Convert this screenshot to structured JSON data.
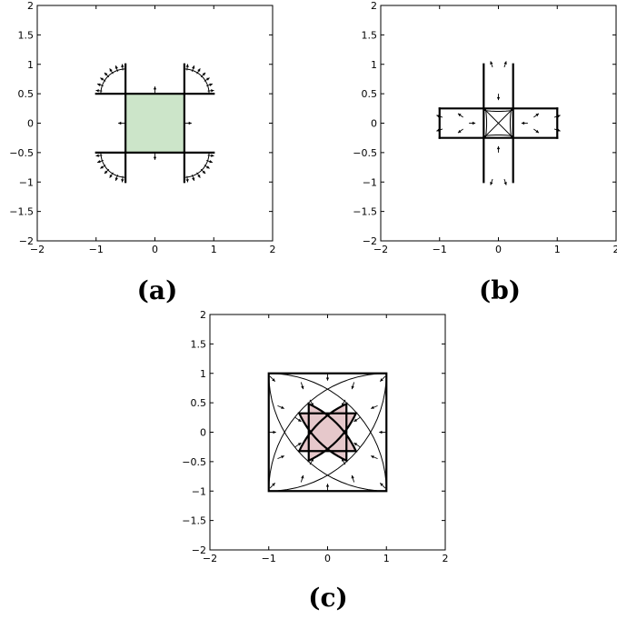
{
  "colors": {
    "region_a": "#cce5c9",
    "region_c": "#e6c8cb",
    "line": "#000000",
    "background": "#ffffff"
  },
  "axes": {
    "xlim": [
      -2,
      2
    ],
    "ylim": [
      -2,
      2
    ],
    "x_tick_labels": [
      "−2",
      "−1",
      "0",
      "1",
      "2"
    ],
    "y_tick_labels": [
      "2",
      "1.5",
      "1",
      "0.5",
      "0",
      "−0.5",
      "−1",
      "−1.5",
      "−2"
    ]
  },
  "panels": [
    {
      "id": "a",
      "label": "(a)",
      "shape": "square-with-corner-brackets"
    },
    {
      "id": "b",
      "label": "(b)",
      "shape": "plus-cross"
    },
    {
      "id": "c",
      "label": "(c)",
      "shape": "square-with-lens"
    }
  ]
}
